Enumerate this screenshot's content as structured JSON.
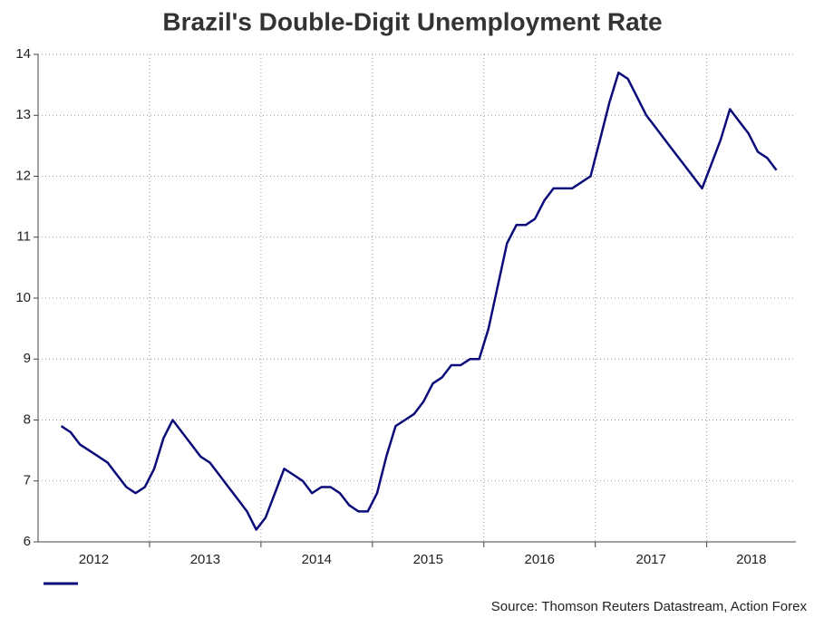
{
  "chart_data": {
    "type": "line",
    "title": "Brazil's Double-Digit Unemployment Rate",
    "source": "Source: Thomson Reuters Datastream, Action Forex",
    "x": [
      2012.208,
      2012.292,
      2012.375,
      2012.458,
      2012.542,
      2012.625,
      2012.708,
      2012.792,
      2012.875,
      2012.958,
      2013.042,
      2013.125,
      2013.208,
      2013.292,
      2013.375,
      2013.458,
      2013.542,
      2013.625,
      2013.708,
      2013.792,
      2013.875,
      2013.958,
      2014.042,
      2014.125,
      2014.208,
      2014.292,
      2014.375,
      2014.458,
      2014.542,
      2014.625,
      2014.708,
      2014.792,
      2014.875,
      2014.958,
      2015.042,
      2015.125,
      2015.208,
      2015.292,
      2015.375,
      2015.458,
      2015.542,
      2015.625,
      2015.708,
      2015.792,
      2015.875,
      2015.958,
      2016.042,
      2016.125,
      2016.208,
      2016.292,
      2016.375,
      2016.458,
      2016.542,
      2016.625,
      2016.708,
      2016.792,
      2016.875,
      2016.958,
      2017.042,
      2017.125,
      2017.208,
      2017.292,
      2017.375,
      2017.458,
      2017.542,
      2017.625,
      2017.708,
      2017.792,
      2017.875,
      2017.958,
      2018.042,
      2018.125,
      2018.208,
      2018.292,
      2018.375,
      2018.458,
      2018.542,
      2018.625
    ],
    "series": [
      {
        "color": "#0b0b7a",
        "values": [
          7.9,
          7.8,
          7.6,
          7.5,
          7.4,
          7.3,
          7.1,
          6.9,
          6.8,
          6.9,
          7.2,
          7.7,
          8.0,
          7.8,
          7.6,
          7.4,
          7.3,
          7.1,
          6.9,
          6.7,
          6.5,
          6.2,
          6.4,
          6.8,
          7.2,
          7.1,
          7.0,
          6.8,
          6.9,
          6.9,
          6.8,
          6.6,
          6.5,
          6.5,
          6.8,
          7.4,
          7.9,
          8.0,
          8.1,
          8.3,
          8.6,
          8.7,
          8.9,
          8.9,
          9.0,
          9.0,
          9.5,
          10.2,
          10.9,
          11.2,
          11.2,
          11.3,
          11.6,
          11.8,
          11.8,
          11.8,
          11.9,
          12.0,
          12.6,
          13.2,
          13.7,
          13.6,
          13.3,
          13.0,
          12.8,
          12.6,
          12.4,
          12.2,
          12.0,
          11.8,
          12.2,
          12.6,
          13.1,
          12.9,
          12.7,
          12.4,
          12.3,
          12.1
        ]
      }
    ],
    "xlim": [
      2012,
      2018.8
    ],
    "xticks": [
      {
        "value": 2012.5,
        "label": "2012"
      },
      {
        "value": 2013.5,
        "label": "2013"
      },
      {
        "value": 2014.5,
        "label": "2014"
      },
      {
        "value": 2015.5,
        "label": "2015"
      },
      {
        "value": 2016.5,
        "label": "2016"
      },
      {
        "value": 2017.5,
        "label": "2017"
      },
      {
        "value": 2018.4,
        "label": "2018"
      }
    ],
    "xgrid": [
      2013,
      2014,
      2015,
      2016,
      2017,
      2018
    ],
    "ylim": [
      6,
      14
    ],
    "yticks": [
      6,
      7,
      8,
      9,
      10,
      11,
      12,
      13,
      14
    ],
    "grid": true
  }
}
